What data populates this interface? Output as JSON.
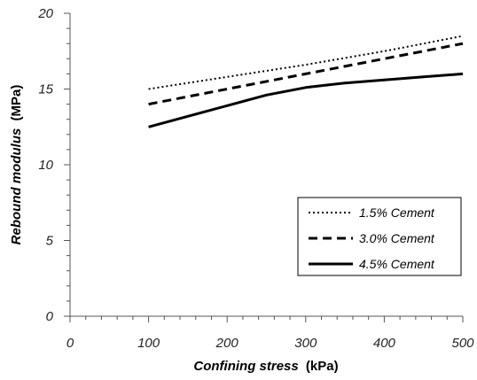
{
  "chart_data": {
    "type": "line",
    "xlabel": {
      "italic": "Confining stress",
      "unit": "(kPa)"
    },
    "ylabel": {
      "italic": "Rebound modulus",
      "unit": "(MPa)"
    },
    "xlim": [
      0,
      500
    ],
    "ylim": [
      0,
      20
    ],
    "xticks": [
      0,
      100,
      200,
      300,
      400,
      500
    ],
    "yticks": [
      0,
      5,
      10,
      15,
      20
    ],
    "grid": false,
    "legend_position": "bottom-right",
    "series": [
      {
        "name": "1.5% Cement",
        "style": "dotted",
        "color": "#000000",
        "x": [
          100,
          200,
          300,
          400,
          500
        ],
        "y": [
          15.0,
          15.8,
          16.6,
          17.5,
          18.5
        ]
      },
      {
        "name": "3.0% Cement",
        "style": "dashed",
        "color": "#000000",
        "x": [
          100,
          200,
          300,
          400,
          500
        ],
        "y": [
          14.0,
          15.0,
          16.0,
          17.0,
          18.0
        ]
      },
      {
        "name": "4.5% Cement",
        "style": "solid",
        "color": "#000000",
        "x": [
          100,
          150,
          200,
          250,
          300,
          350,
          400,
          450,
          500
        ],
        "y": [
          12.5,
          13.2,
          13.9,
          14.6,
          15.1,
          15.4,
          15.6,
          15.8,
          16.0
        ]
      }
    ]
  }
}
